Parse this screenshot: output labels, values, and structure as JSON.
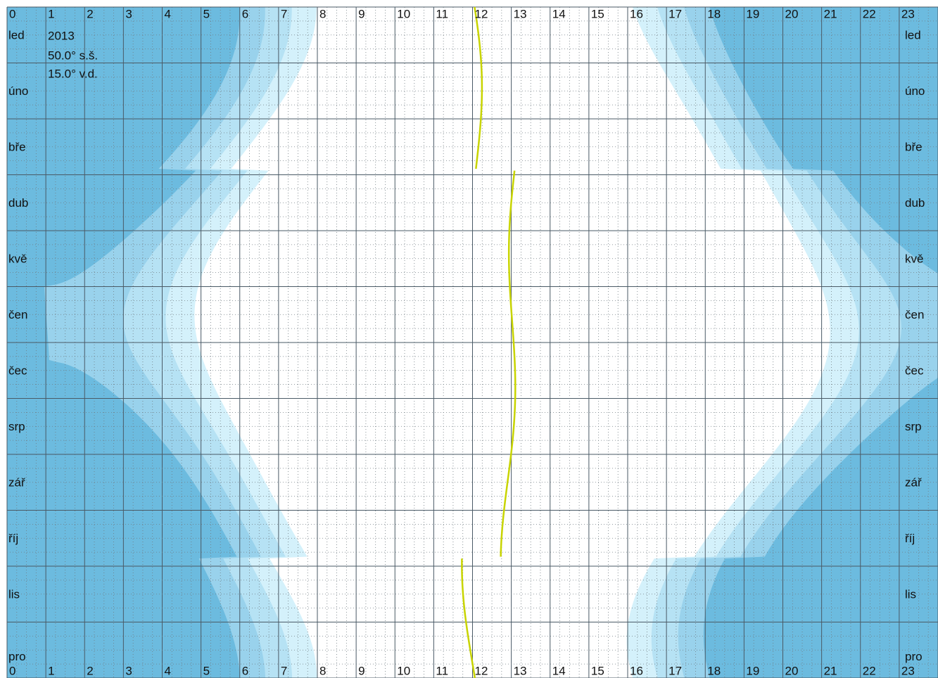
{
  "hours": [
    0,
    1,
    2,
    3,
    4,
    5,
    6,
    7,
    8,
    9,
    10,
    11,
    12,
    13,
    14,
    15,
    16,
    17,
    18,
    19,
    20,
    21,
    22,
    23
  ],
  "months": [
    "led",
    "úno",
    "bře",
    "dub",
    "kvě",
    "čen",
    "čec",
    "srp",
    "zář",
    "říj",
    "lis",
    "pro"
  ],
  "year": 2013,
  "latitude": {
    "value": 50.0,
    "label": "50.0° s.š."
  },
  "longitude": {
    "value": 15.0,
    "label": "15.0° v.d."
  }
}
